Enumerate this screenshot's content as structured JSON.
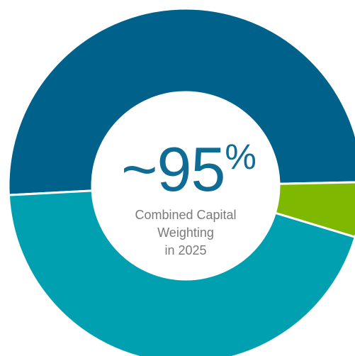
{
  "chart_data": {
    "type": "pie",
    "title": "",
    "donut": true,
    "slices": [
      {
        "value": 50.5,
        "color": "#00628b"
      },
      {
        "value": 44.5,
        "color": "#00a0b0"
      },
      {
        "value": 5.0,
        "color": "#7fb800"
      }
    ],
    "center_text": {
      "value": "~95",
      "unit": "%",
      "caption_lines": [
        "Combined Capital",
        "Weighting",
        "in 2025"
      ]
    }
  }
}
